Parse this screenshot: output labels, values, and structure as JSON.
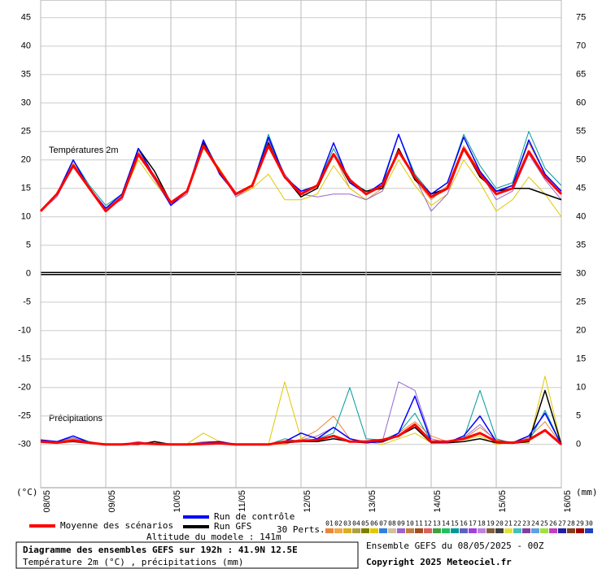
{
  "chart_data": {
    "type": "line",
    "temperature_label": "Températures 2m",
    "precipitation_label": "Précipitations",
    "y_unit": "(°C)",
    "y2_unit": "(mm)",
    "title": "Diagramme des ensembles GEFS sur 192h : 41.9N 12.5E",
    "subtitle": "Température 2m (°C) , précipitations (mm)",
    "altitude": "Altitude du modele : 141m",
    "run_info": "Ensemble GEFS du 08/05/2025 - 00Z",
    "copyright": "Copyright 2025 Meteociel.fr",
    "x": [
      0,
      6,
      12,
      18,
      24,
      30,
      36,
      42,
      48,
      54,
      60,
      66,
      72,
      78,
      84,
      90,
      96,
      102,
      108,
      114,
      120,
      126,
      132,
      138,
      144,
      150,
      156,
      162,
      168,
      174,
      180,
      186,
      192
    ],
    "xlim": [
      0,
      192
    ],
    "xticks": [
      {
        "value": 0,
        "label": "08/05"
      },
      {
        "value": 24,
        "label": "09/05"
      },
      {
        "value": 48,
        "label": "10/05"
      },
      {
        "value": 72,
        "label": "11/05"
      },
      {
        "value": 96,
        "label": "12/05"
      },
      {
        "value": 120,
        "label": "13/05"
      },
      {
        "value": 144,
        "label": "14/05"
      },
      {
        "value": 168,
        "label": "15/05"
      },
      {
        "value": 192,
        "label": "16/05"
      }
    ],
    "ylim": [
      -37.6,
      48.1
    ],
    "yticks": [
      -30,
      -25,
      -20,
      -15,
      -10,
      -5,
      0,
      5,
      10,
      15,
      20,
      25,
      30,
      35,
      40,
      45
    ],
    "y2lim": [
      -7.6,
      78.1
    ],
    "y2ticks": [
      0,
      5,
      10,
      15,
      20,
      25,
      30,
      35,
      40,
      45,
      50,
      55,
      60,
      65,
      70,
      75
    ],
    "grid": true,
    "series": [
      {
        "name": "Moyenne des scénarios",
        "color": "#ff0000",
        "values": [
          11,
          14,
          19,
          15,
          11,
          13.5,
          21,
          17,
          12.5,
          14.5,
          22.5,
          18,
          14,
          15.5,
          22.5,
          17,
          14,
          15.5,
          21,
          16.5,
          14,
          15.5,
          21.5,
          17,
          13.5,
          15,
          22,
          17.5,
          14,
          15,
          21.5,
          17,
          14
        ],
        "precip": [
          0.5,
          0.3,
          0.7,
          0.3,
          0,
          0,
          0.2,
          0.1,
          0,
          0,
          0.1,
          0.2,
          0,
          0,
          0,
          0.5,
          0.6,
          0.8,
          1.5,
          0.5,
          0.5,
          0.8,
          1.5,
          3.5,
          0.5,
          0.5,
          1,
          2,
          0.5,
          0.3,
          0.8,
          2.5,
          0
        ]
      },
      {
        "name": "Run de contrôle",
        "color": "#0000ff",
        "values": [
          11,
          14,
          20,
          15,
          11.5,
          14,
          22,
          17,
          12,
          14.5,
          23.5,
          17.5,
          14,
          15.5,
          24,
          17,
          14.5,
          15.5,
          23,
          16,
          14,
          16,
          24.5,
          17,
          14,
          16,
          24,
          18,
          14.5,
          15.5,
          23.5,
          17.5,
          14.5
        ],
        "precip": [
          0.8,
          0.5,
          1.5,
          0.3,
          0,
          0,
          0.3,
          0,
          0,
          0,
          0.3,
          0.5,
          0,
          0,
          0,
          0.5,
          2,
          1,
          3,
          1,
          0.3,
          0.5,
          2,
          8.5,
          0.5,
          0.3,
          1.5,
          5,
          0.5,
          0.3,
          1.5,
          5.5,
          0
        ]
      },
      {
        "name": "Run GFS",
        "color": "#000000",
        "values": [
          11,
          14,
          19,
          15,
          11,
          13.5,
          22,
          18,
          12.5,
          14.5,
          23,
          18,
          14,
          15.5,
          23,
          17,
          13.5,
          15,
          21,
          16,
          14.5,
          15,
          22,
          16.5,
          14,
          15,
          22,
          17,
          14.5,
          15,
          15,
          14,
          13
        ],
        "precip": [
          0.5,
          0.3,
          0.5,
          0.2,
          0,
          0,
          0,
          0.5,
          0,
          0,
          0,
          0.3,
          0,
          0,
          0,
          0.3,
          0.5,
          0.5,
          1,
          0.5,
          0.3,
          0.5,
          1.5,
          3,
          0.3,
          0.3,
          0.5,
          1,
          0.3,
          0.2,
          0.5,
          9.5,
          0
        ]
      }
    ],
    "perturbations_label": "30 Perts.",
    "perturbations": [
      {
        "name": "01",
        "color": "#e8873a",
        "values": [
          11,
          14,
          19.5,
          15,
          11.5,
          13.5,
          21.5,
          17,
          12.5,
          14,
          23,
          18,
          13.5,
          15,
          23,
          17,
          14.5,
          15,
          21,
          15,
          13,
          15,
          22,
          16.5,
          13,
          15.5,
          22.5,
          18,
          14.5,
          15.5,
          23,
          17.5,
          14.5
        ],
        "precip": [
          0.8,
          0.5,
          1,
          0.2,
          0,
          0,
          0.3,
          0,
          0,
          0,
          0.5,
          0.5,
          0,
          0,
          0,
          0,
          1,
          2.5,
          5,
          1,
          0.5,
          0.3,
          2,
          4,
          1.5,
          0.5,
          1,
          3,
          0.8,
          0.3,
          1.2,
          4,
          0
        ]
      },
      {
        "name": "02",
        "color": "#f0a848"
      },
      {
        "name": "03",
        "color": "#d8b020"
      },
      {
        "name": "04",
        "color": "#b0a040"
      },
      {
        "name": "05",
        "color": "#808000"
      },
      {
        "name": "06",
        "color": "#e0c800",
        "values": [
          11,
          14,
          19,
          15,
          11,
          13.5,
          20,
          16,
          12.5,
          14.5,
          22,
          18.5,
          14,
          15,
          17.5,
          13,
          13,
          14,
          19,
          15,
          13,
          14.5,
          20,
          15.5,
          12,
          14,
          20,
          16,
          11,
          13,
          17,
          14,
          10
        ],
        "precip": [
          0.3,
          0.2,
          0.5,
          0.3,
          0,
          0,
          0,
          0.2,
          0,
          0.1,
          2,
          0.5,
          0,
          0,
          0,
          11,
          1,
          0.5,
          1.5,
          0.5,
          0.5,
          0,
          1,
          2,
          0.3,
          0.5,
          0.8,
          1.5,
          0,
          0.5,
          0.2,
          12,
          0
        ]
      },
      {
        "name": "07",
        "color": "#3080e0"
      },
      {
        "name": "08",
        "color": "#d0c0a0"
      },
      {
        "name": "09",
        "color": "#9966cc",
        "values": [
          11,
          13.5,
          19,
          15,
          11.5,
          13,
          21,
          16.5,
          12,
          14,
          22.5,
          18,
          13.5,
          15.5,
          23.5,
          17.5,
          14,
          13.5,
          14,
          14,
          13,
          14.5,
          22,
          17,
          11,
          14,
          22,
          18,
          13,
          14.5,
          21,
          16.5,
          13
        ],
        "precip": [
          0.5,
          0.5,
          1.2,
          0.2,
          0,
          0,
          0.5,
          0,
          0,
          0,
          0.2,
          0.3,
          0,
          0,
          0,
          0.5,
          0.8,
          1.5,
          3,
          1,
          0.5,
          0.5,
          11,
          9.5,
          1,
          0.3,
          1.2,
          3.5,
          0.5,
          0.3,
          1,
          2.5,
          0
        ]
      },
      {
        "name": "10",
        "color": "#c08040"
      },
      {
        "name": "11",
        "color": "#a05020"
      },
      {
        "name": "12",
        "color": "#e06060"
      },
      {
        "name": "13",
        "color": "#40a040"
      },
      {
        "name": "14",
        "color": "#20c060"
      },
      {
        "name": "15",
        "color": "#009999",
        "values": [
          11,
          14,
          20,
          15.5,
          12,
          14,
          22,
          17,
          12.5,
          14.5,
          23.5,
          18,
          14,
          15.5,
          24.5,
          17,
          14,
          15.5,
          22,
          16.5,
          14.5,
          15.5,
          24.5,
          17.5,
          14,
          16,
          24.5,
          19,
          15,
          16,
          25,
          18.5,
          15.5
        ],
        "precip": [
          0.5,
          0.3,
          1.5,
          0.5,
          0,
          0,
          0.3,
          0,
          0,
          0,
          0.2,
          0.5,
          0,
          0,
          0,
          1,
          0.5,
          1,
          2,
          10,
          1,
          0.8,
          2,
          5.5,
          0.5,
          0.5,
          1,
          9.5,
          1,
          0.2,
          0.5,
          6,
          0
        ]
      },
      {
        "name": "16",
        "color": "#6060c0"
      },
      {
        "name": "17",
        "color": "#a040e0"
      },
      {
        "name": "18",
        "color": "#c080e0"
      },
      {
        "name": "19",
        "color": "#806040"
      },
      {
        "name": "20",
        "color": "#404040"
      },
      {
        "name": "21",
        "color": "#e0e040"
      },
      {
        "name": "22",
        "color": "#40c0c0"
      },
      {
        "name": "23",
        "color": "#8040a0"
      },
      {
        "name": "24",
        "color": "#60a0e0"
      },
      {
        "name": "25",
        "color": "#a0e040"
      },
      {
        "name": "26",
        "color": "#c040c0"
      },
      {
        "name": "27",
        "color": "#2020a0"
      },
      {
        "name": "28",
        "color": "#804020"
      },
      {
        "name": "29",
        "color": "#a00000"
      },
      {
        "name": "30",
        "color": "#2040c0"
      }
    ]
  }
}
